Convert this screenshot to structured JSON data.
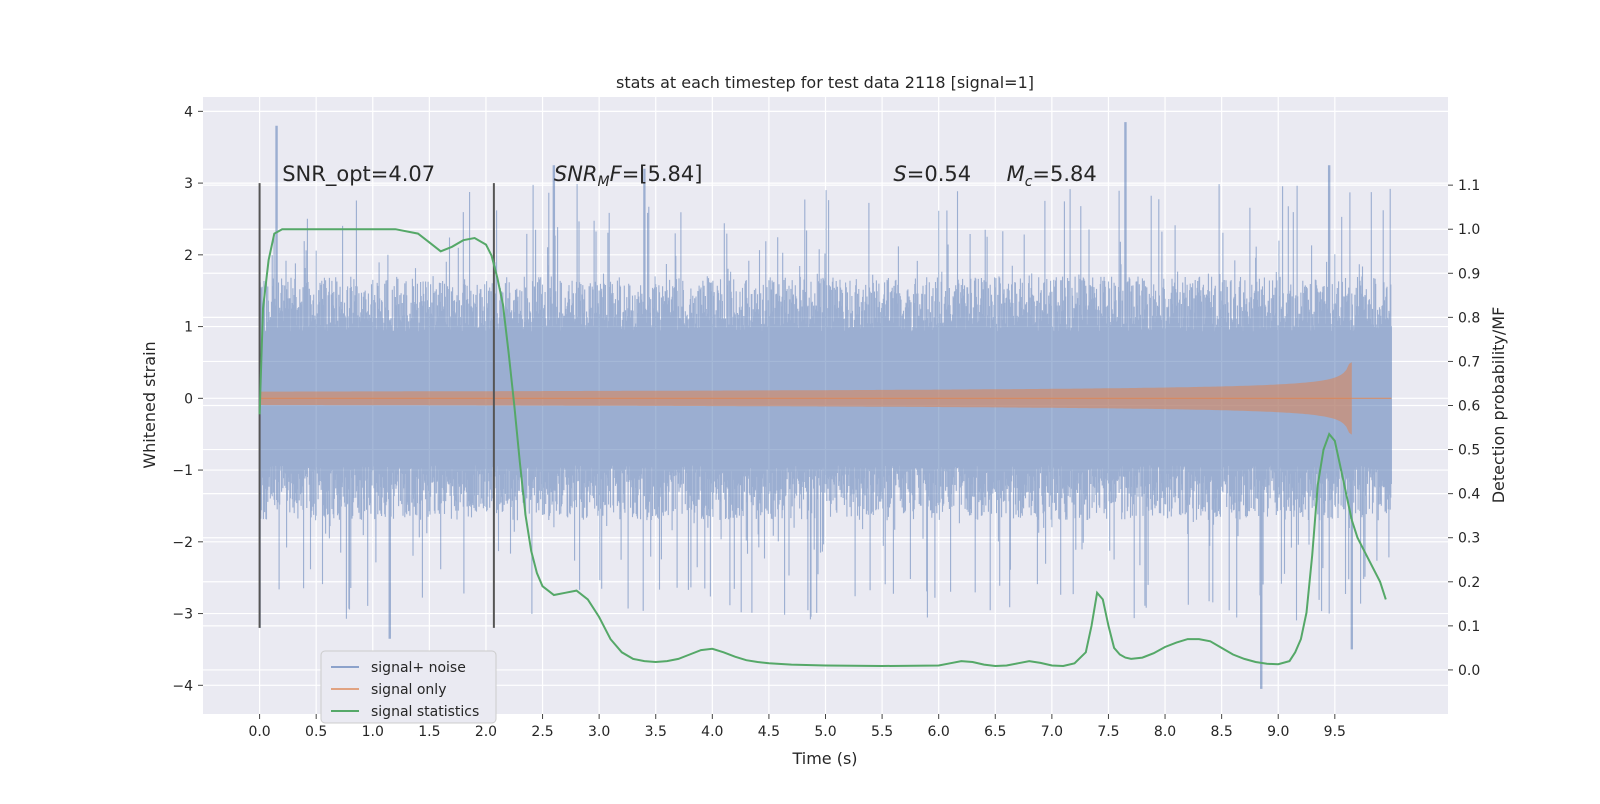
{
  "chart_data": {
    "type": "line",
    "title": "stats at each timestep for test data 2118 [signal=1]",
    "xlabel": "Time (s)",
    "ylabel": "Whitened strain",
    "y2label": "Detection probability/MF",
    "xlim": [
      -0.5,
      10.5
    ],
    "ylim": [
      -4.4,
      4.2
    ],
    "y2lim": [
      -0.1,
      1.3
    ],
    "x_ticks": [
      "0.0",
      "0.5",
      "1.0",
      "1.5",
      "2.0",
      "2.5",
      "3.0",
      "3.5",
      "4.0",
      "4.5",
      "5.0",
      "5.5",
      "6.0",
      "6.5",
      "7.0",
      "7.5",
      "8.0",
      "8.5",
      "9.0",
      "9.5"
    ],
    "y_ticks": [
      "-4",
      "-3",
      "-2",
      "-1",
      "0",
      "1",
      "2",
      "3",
      "4"
    ],
    "y2_ticks": [
      "0.0",
      "0.1",
      "0.2",
      "0.3",
      "0.4",
      "0.5",
      "0.6",
      "0.7",
      "0.8",
      "0.9",
      "1.0",
      "1.1"
    ],
    "grid": true,
    "legend_position": "lower-left",
    "vlines": [
      0.0,
      2.07
    ],
    "annotations": [
      {
        "id": "snr-opt",
        "prefix": "SNR_opt=4.07",
        "sub": "",
        "suffix": "",
        "x": 0.2,
        "y": 3.0
      },
      {
        "id": "snr-mf",
        "prefix": "SNR",
        "sub": "M",
        "suffix": "F=[5.84]",
        "x": 2.6,
        "y": 3.0,
        "italic": true
      },
      {
        "id": "s-value",
        "prefix": "S",
        "sub": "",
        "suffix": "=0.54",
        "x": 5.6,
        "y": 3.0,
        "italic": true
      },
      {
        "id": "mc-value",
        "prefix": "M",
        "sub": "c",
        "suffix": "=5.84",
        "x": 6.6,
        "y": 3.0,
        "italic": true
      }
    ],
    "series": [
      {
        "name": "signal+ noise",
        "color": "#4c72b0",
        "axis": "left",
        "kind": "noise",
        "x_start": 0.0,
        "x_end": 10.0,
        "core_amplitude": 1.7,
        "peak_times": [
          0.15,
          2.6,
          3.4,
          7.65,
          9.45
        ],
        "peak_values": [
          3.8,
          3.25,
          3.2,
          3.85,
          3.25
        ],
        "trough_times": [
          0.0,
          1.15,
          8.85,
          9.65
        ],
        "trough_values": [
          -3.2,
          -3.35,
          -4.05,
          -3.5
        ]
      },
      {
        "name": "signal only",
        "color": "#dd8452",
        "axis": "left",
        "kind": "chirp",
        "x_start": 0.0,
        "x_end": 10.0,
        "merger_time": 9.65,
        "peak_amplitude": 0.5
      },
      {
        "name": "signal statistics",
        "color": "#55a868",
        "axis": "right",
        "kind": "line",
        "x": [
          0.0,
          0.03,
          0.08,
          0.13,
          0.2,
          0.3,
          0.5,
          0.8,
          1.0,
          1.2,
          1.4,
          1.5,
          1.6,
          1.7,
          1.8,
          1.9,
          2.0,
          2.05,
          2.1,
          2.15,
          2.2,
          2.25,
          2.3,
          2.35,
          2.4,
          2.45,
          2.5,
          2.6,
          2.7,
          2.8,
          2.9,
          3.0,
          3.1,
          3.2,
          3.3,
          3.4,
          3.5,
          3.6,
          3.7,
          3.8,
          3.9,
          4.0,
          4.1,
          4.2,
          4.3,
          4.4,
          4.5,
          4.7,
          5.0,
          5.5,
          6.0,
          6.1,
          6.2,
          6.3,
          6.4,
          6.5,
          6.6,
          6.7,
          6.8,
          6.9,
          7.0,
          7.1,
          7.2,
          7.3,
          7.35,
          7.4,
          7.45,
          7.5,
          7.55,
          7.6,
          7.65,
          7.7,
          7.8,
          7.9,
          8.0,
          8.1,
          8.2,
          8.3,
          8.4,
          8.5,
          8.6,
          8.7,
          8.8,
          8.9,
          9.0,
          9.1,
          9.15,
          9.2,
          9.25,
          9.3,
          9.35,
          9.4,
          9.45,
          9.5,
          9.55,
          9.6,
          9.65,
          9.7,
          9.8,
          9.9,
          9.95
        ],
        "y": [
          0.58,
          0.82,
          0.93,
          0.99,
          1.0,
          1.0,
          1.0,
          1.0,
          1.0,
          1.0,
          0.99,
          0.97,
          0.95,
          0.96,
          0.975,
          0.98,
          0.965,
          0.94,
          0.89,
          0.83,
          0.72,
          0.6,
          0.47,
          0.35,
          0.27,
          0.22,
          0.19,
          0.17,
          0.175,
          0.18,
          0.16,
          0.12,
          0.07,
          0.04,
          0.025,
          0.02,
          0.018,
          0.02,
          0.025,
          0.035,
          0.045,
          0.048,
          0.04,
          0.03,
          0.022,
          0.018,
          0.015,
          0.012,
          0.01,
          0.009,
          0.01,
          0.015,
          0.02,
          0.018,
          0.012,
          0.009,
          0.01,
          0.015,
          0.02,
          0.016,
          0.01,
          0.009,
          0.015,
          0.04,
          0.1,
          0.175,
          0.16,
          0.1,
          0.05,
          0.035,
          0.028,
          0.025,
          0.028,
          0.038,
          0.052,
          0.062,
          0.07,
          0.07,
          0.065,
          0.05,
          0.035,
          0.025,
          0.018,
          0.014,
          0.013,
          0.02,
          0.04,
          0.07,
          0.13,
          0.26,
          0.42,
          0.5,
          0.535,
          0.52,
          0.46,
          0.4,
          0.34,
          0.3,
          0.25,
          0.2,
          0.16
        ]
      }
    ]
  }
}
